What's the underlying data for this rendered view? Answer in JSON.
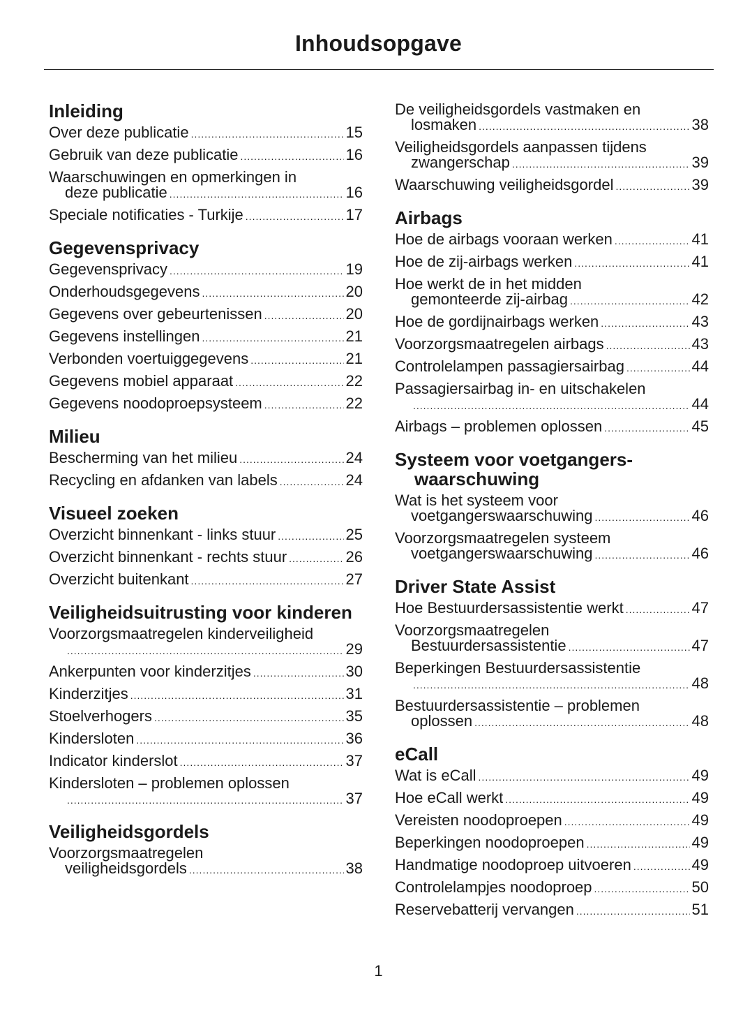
{
  "title": "Inhoudsopgave",
  "page_number": "1",
  "columns": [
    [
      {
        "heading": "Inleiding",
        "entries": [
          {
            "text": "Over deze publicatie",
            "page": "15"
          },
          {
            "text": "Gebruik van deze publicatie",
            "page": "16"
          },
          {
            "text": "Waarschuwingen en opmerkingen in",
            "text2": "deze publicatie",
            "page": "16"
          },
          {
            "text": "Speciale notificaties - Turkije",
            "page": "17"
          }
        ]
      },
      {
        "heading": "Gegevensprivacy",
        "entries": [
          {
            "text": "Gegevensprivacy",
            "page": "19"
          },
          {
            "text": "Onderhoudsgegevens",
            "page": "20"
          },
          {
            "text": "Gegevens over gebeurtenissen",
            "page": "20"
          },
          {
            "text": "Gegevens instellingen",
            "page": "21"
          },
          {
            "text": "Verbonden voertuiggegevens",
            "page": "21"
          },
          {
            "text": "Gegevens mobiel apparaat",
            "page": "22"
          },
          {
            "text": "Gegevens noodoproepsysteem",
            "page": "22"
          }
        ]
      },
      {
        "heading": "Milieu",
        "entries": [
          {
            "text": "Bescherming van het milieu",
            "page": "24"
          },
          {
            "text": "Recycling en afdanken van labels",
            "page": "24"
          }
        ]
      },
      {
        "heading": "Visueel zoeken",
        "entries": [
          {
            "text": "Overzicht binnenkant - links stuur",
            "page": "25"
          },
          {
            "text": "Overzicht binnenkant - rechts stuur",
            "page": "26"
          },
          {
            "text": "Overzicht buitenkant",
            "page": "27"
          }
        ]
      },
      {
        "heading": "Veiligheidsuitrusting voor kinderen",
        "entries": [
          {
            "text": "Voorzorgsmaatregelen kinderveiligheid",
            "text2": "",
            "page": "29"
          },
          {
            "text": "Ankerpunten voor kinderzitjes",
            "page": "30"
          },
          {
            "text": "Kinderzitjes",
            "page": "31"
          },
          {
            "text": "Stoelverhogers",
            "page": "35"
          },
          {
            "text": "Kindersloten",
            "page": "36"
          },
          {
            "text": "Indicator kinderslot",
            "page": "37"
          },
          {
            "text": "Kindersloten – problemen oplossen",
            "text2": "",
            "page": "37"
          }
        ]
      },
      {
        "heading": "Veiligheidsgordels",
        "entries": [
          {
            "text": "Voorzorgsmaatregelen",
            "text2": "veiligheidsgordels",
            "page": "38"
          }
        ]
      }
    ],
    [
      {
        "heading": "",
        "entries": [
          {
            "text": "De veiligheidsgordels vastmaken en",
            "text2": "losmaken",
            "page": "38"
          },
          {
            "text": "Veiligheidsgordels aanpassen tijdens",
            "text2": "zwangerschap",
            "page": "39"
          },
          {
            "text": "Waarschuwing veiligheidsgordel",
            "page": "39"
          }
        ]
      },
      {
        "heading": "Airbags",
        "entries": [
          {
            "text": "Hoe de airbags vooraan werken",
            "page": "41"
          },
          {
            "text": "Hoe de zij-airbags werken",
            "page": "41"
          },
          {
            "text": "Hoe werkt de in het midden",
            "text2": "gemonteerde zij-airbag",
            "page": "42"
          },
          {
            "text": "Hoe de gordijnairbags werken",
            "page": "43"
          },
          {
            "text": "Voorzorgsmaatregelen airbags",
            "page": "43"
          },
          {
            "text": "Controlelampen passagiersairbag",
            "page": "44"
          },
          {
            "text": "Passagiersairbag in- en uitschakelen",
            "text2": "",
            "page": "44"
          },
          {
            "text": "Airbags – problemen oplossen",
            "page": "45"
          }
        ]
      },
      {
        "heading": "Systeem voor voetgangers-waarschuwing",
        "entries": [
          {
            "text": "Wat is het systeem voor",
            "text2": "voetgangerswaarschuwing",
            "page": "46"
          },
          {
            "text": "Voorzorgsmaatregelen systeem",
            "text2": "voetgangerswaarschuwing",
            "page": "46"
          }
        ]
      },
      {
        "heading": "Driver State Assist",
        "entries": [
          {
            "text": "Hoe Bestuurdersassistentie werkt",
            "page": "47"
          },
          {
            "text": "Voorzorgsmaatregelen",
            "text2": "Bestuurdersassistentie",
            "page": "47"
          },
          {
            "text": "Beperkingen Bestuurdersassistentie",
            "text2": "",
            "page": "48"
          },
          {
            "text": "Bestuurdersassistentie – problemen",
            "text2": "oplossen",
            "page": "48"
          }
        ]
      },
      {
        "heading": "eCall",
        "entries": [
          {
            "text": "Wat is eCall",
            "page": "49"
          },
          {
            "text": "Hoe eCall werkt",
            "page": "49"
          },
          {
            "text": "Vereisten noodoproepen",
            "page": "49"
          },
          {
            "text": "Beperkingen noodoproepen",
            "page": "49"
          },
          {
            "text": "Handmatige noodoproep uitvoeren",
            "page": "49"
          },
          {
            "text": "Controlelampjes noodoproep",
            "page": "50"
          },
          {
            "text": "Reservebatterij vervangen",
            "page": "51"
          }
        ]
      }
    ]
  ]
}
